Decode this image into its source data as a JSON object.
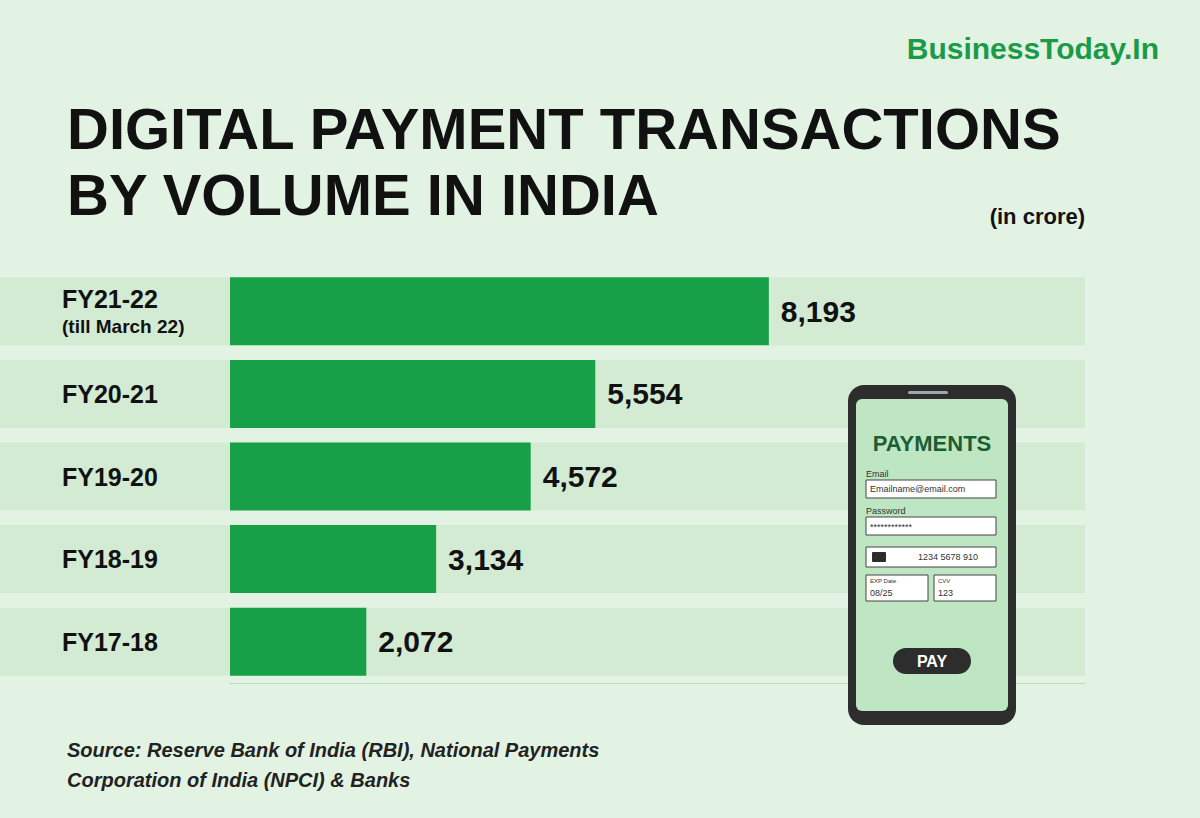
{
  "chart_data": {
    "type": "bar",
    "title": "DIGITAL PAYMENT TRANSACTIONS\nBY VOLUME IN INDIA",
    "subtitle": "(in crore)",
    "brand": "BusinessToday.In",
    "source": "Source: Reserve Bank of India (RBI), National Payments Corporation of India (NPCI) & Banks",
    "categories": [
      "FY21-22\n(till March 22)",
      "FY20-21",
      "FY19-20",
      "FY18-19",
      "FY17-18"
    ],
    "values": [
      8193,
      5554,
      4572,
      3134,
      2072
    ],
    "value_labels": [
      "8,193",
      "5,554",
      "4,572",
      "3,134",
      "2,072"
    ],
    "color": "#17a048",
    "orientation": "horizontal",
    "xlim": [
      0,
      13000
    ],
    "grid": false,
    "data_labels": true,
    "tick_labels": false
  },
  "illustration": {
    "heading": "PAYMENTS",
    "email_label": "Email",
    "email_value": "Emailname@email.com",
    "password_label": "Password",
    "password_value": "************",
    "card_number": "1234 5678 910",
    "expiry_label": "EXP Date",
    "expiry_value": "08/25",
    "cvv_label": "CVV",
    "cvv_value": "123",
    "button": "PAY"
  }
}
